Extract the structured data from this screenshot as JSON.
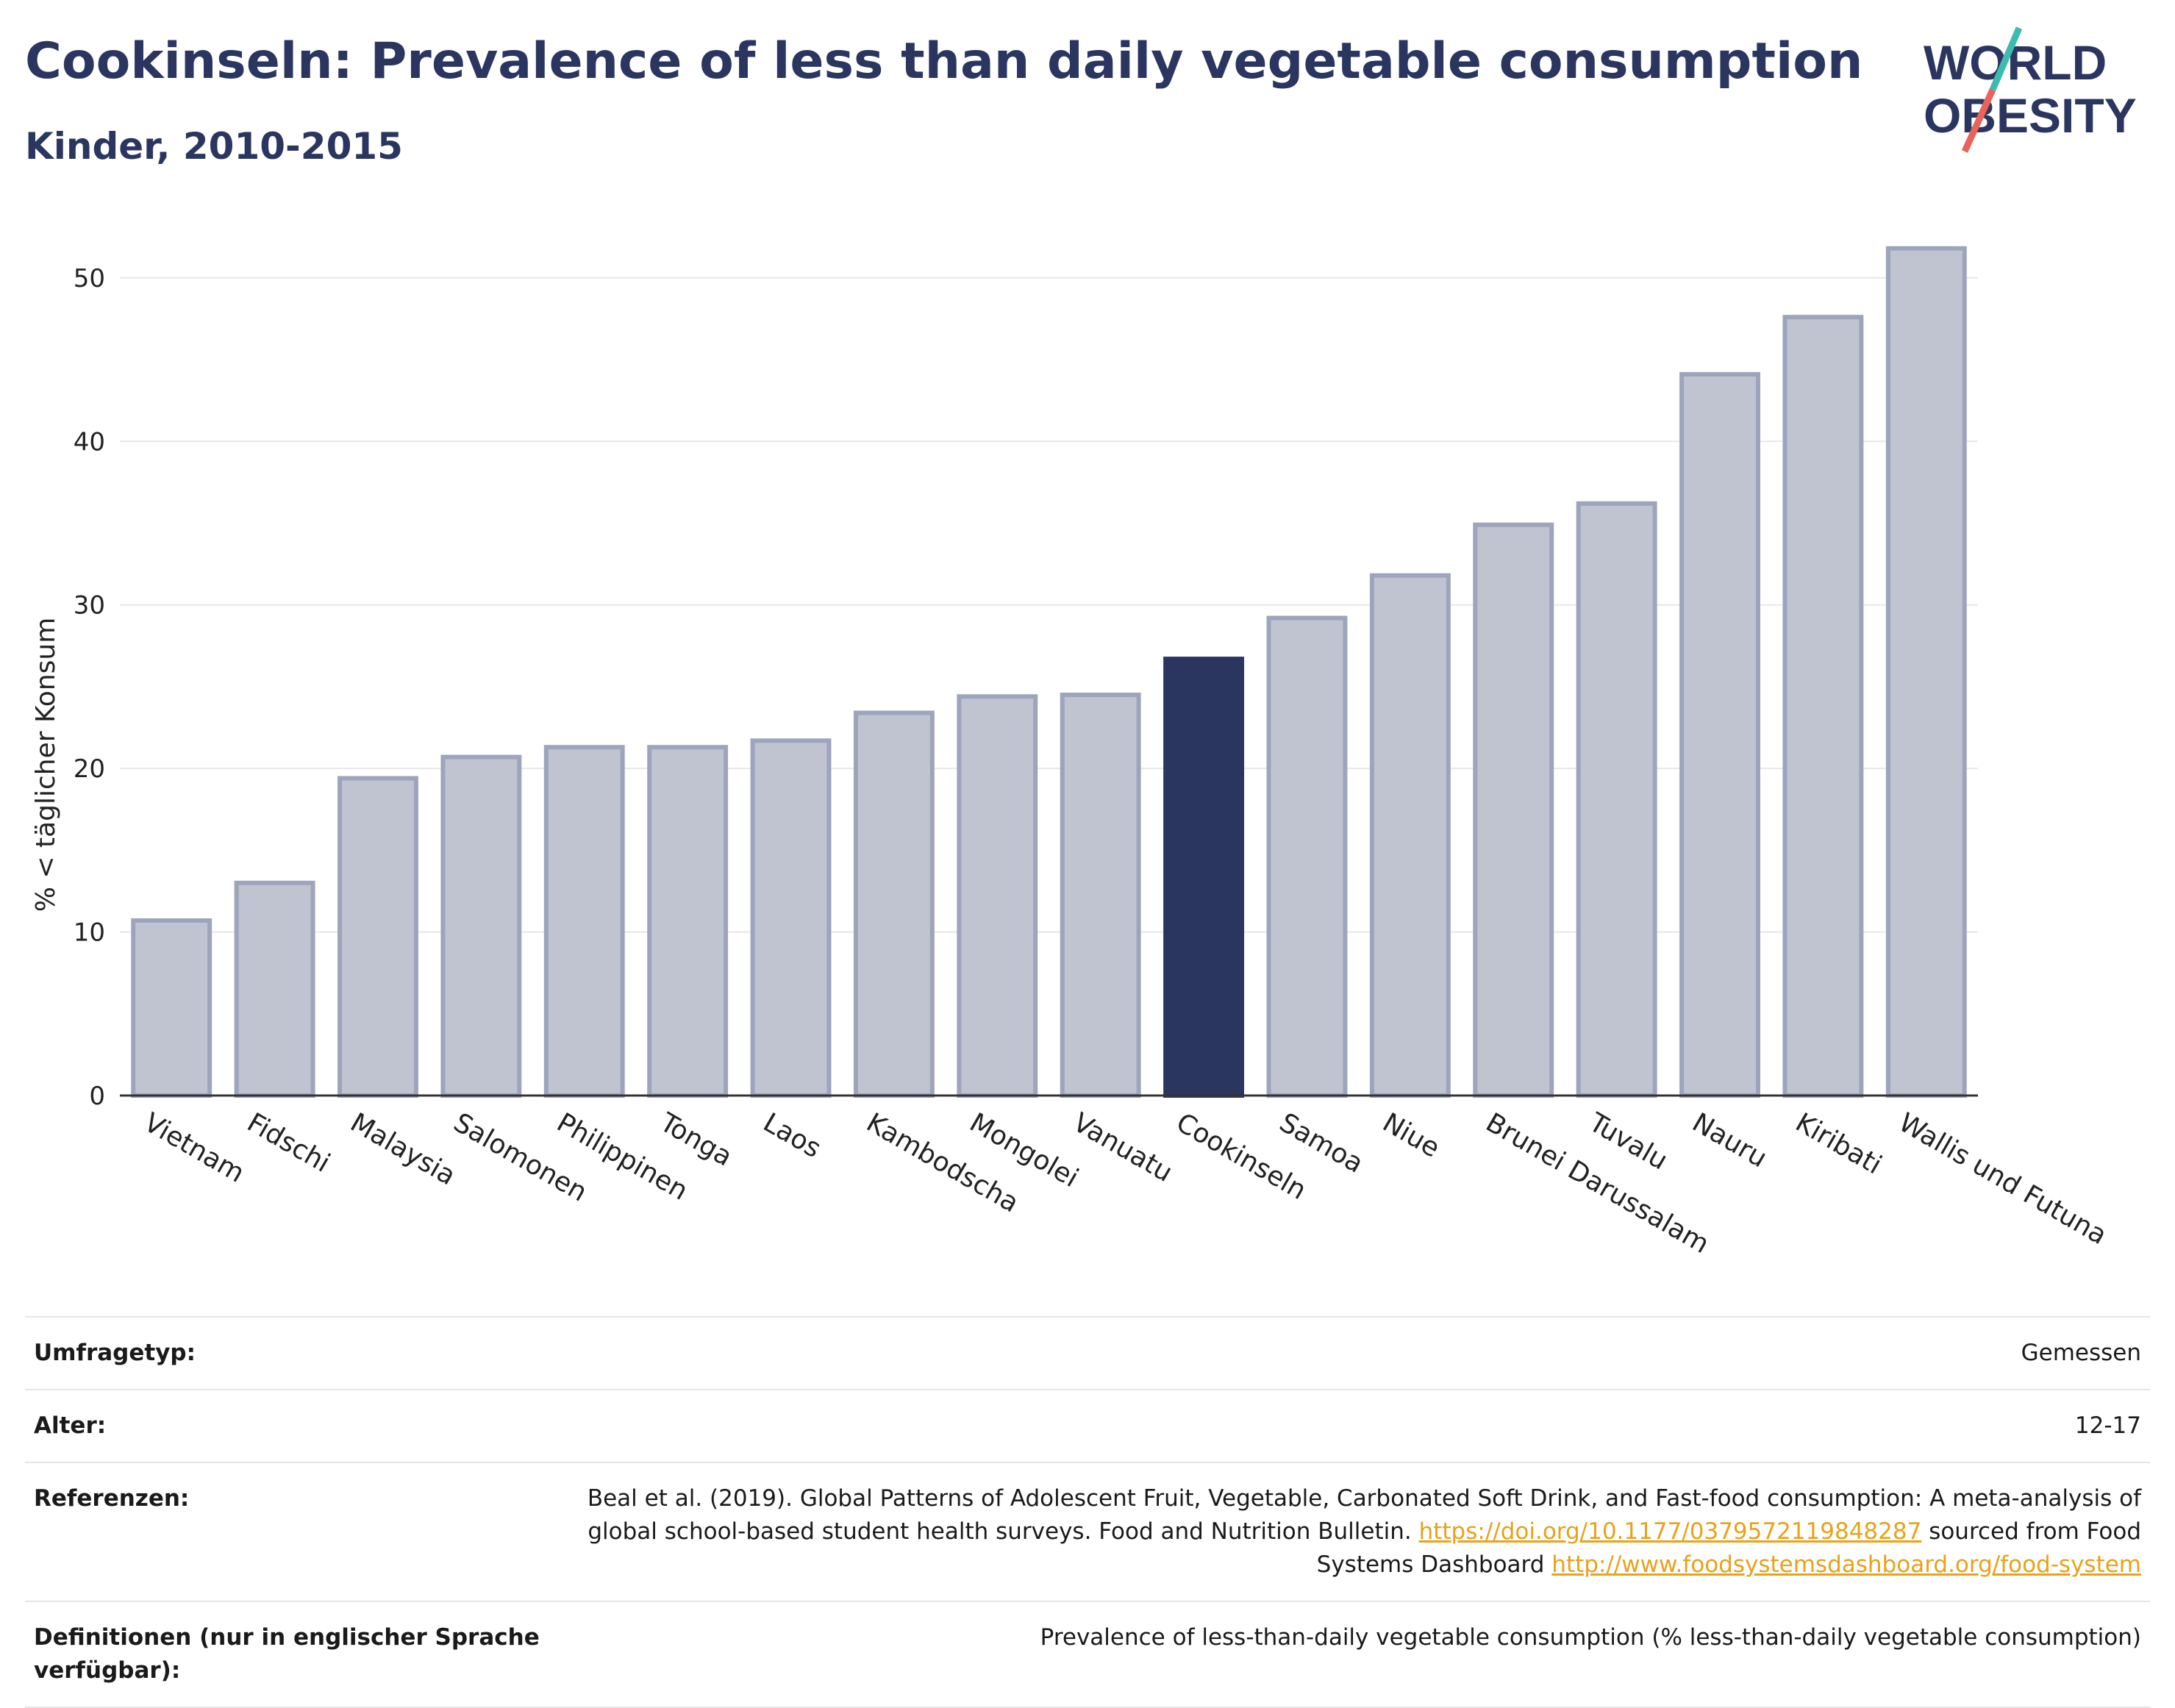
{
  "header": {
    "title": "Cookinseln: Prevalence of less than daily vegetable consumption",
    "subtitle": "Kinder, 2010-2015"
  },
  "logo": {
    "line1": "WORLD",
    "line2": "OBESITY",
    "accent_colors": [
      "#3dbbb0",
      "#e8645a"
    ]
  },
  "colors": {
    "highlight": "#2b3660",
    "bar": "#c0c4d1",
    "bar_border": "#9da4bc",
    "grid": "#e8e8e8",
    "link": "#e8a21b"
  },
  "chart_data": {
    "type": "bar",
    "title": "Cookinseln: Prevalence of less than daily vegetable consumption",
    "subtitle": "Kinder, 2010-2015",
    "xlabel": "",
    "ylabel": "% < täglicher Konsum",
    "ylim": [
      0,
      53.5
    ],
    "yticks": [
      0,
      10,
      20,
      30,
      40,
      50
    ],
    "grid": true,
    "highlight": "Cookinseln",
    "categories": [
      "Vietnam",
      "Fidschi",
      "Malaysia",
      "Salomonen",
      "Philippinen",
      "Tonga",
      "Laos",
      "Kambodscha",
      "Mongolei",
      "Vanuatu",
      "Cookinseln",
      "Samoa",
      "Niue",
      "Brunei Darussalam",
      "Tuvalu",
      "Nauru",
      "Kiribati",
      "Wallis und Futuna"
    ],
    "values": [
      10.7,
      13.0,
      19.4,
      20.7,
      21.3,
      21.3,
      21.7,
      23.4,
      24.4,
      24.5,
      26.7,
      29.2,
      31.8,
      34.9,
      36.2,
      44.1,
      47.6,
      51.8
    ]
  },
  "info": {
    "rows": [
      {
        "label": "Umfragetyp:",
        "value": "Gemessen"
      },
      {
        "label": "Alter:",
        "value": "12-17"
      },
      {
        "label": "Referenzen:",
        "value_text1": "Beal et al. (2019). Global Patterns of Adolescent Fruit, Vegetable, Carbonated Soft Drink, and Fast-food consumption: A meta-analysis of global school-based student health surveys. Food and Nutrition Bulletin.",
        "link1": "https://doi.org/10.1177/0379572119848287",
        "value_text2": "sourced from Food Systems Dashboard",
        "link2": "http://www.foodsystemsdashboard.org/food-system"
      },
      {
        "label": "Definitionen (nur in englischer Sprache verfügbar):",
        "value": "Prevalence of less-than-daily vegetable consumption (% less-than-daily vegetable consumption)"
      }
    ]
  }
}
